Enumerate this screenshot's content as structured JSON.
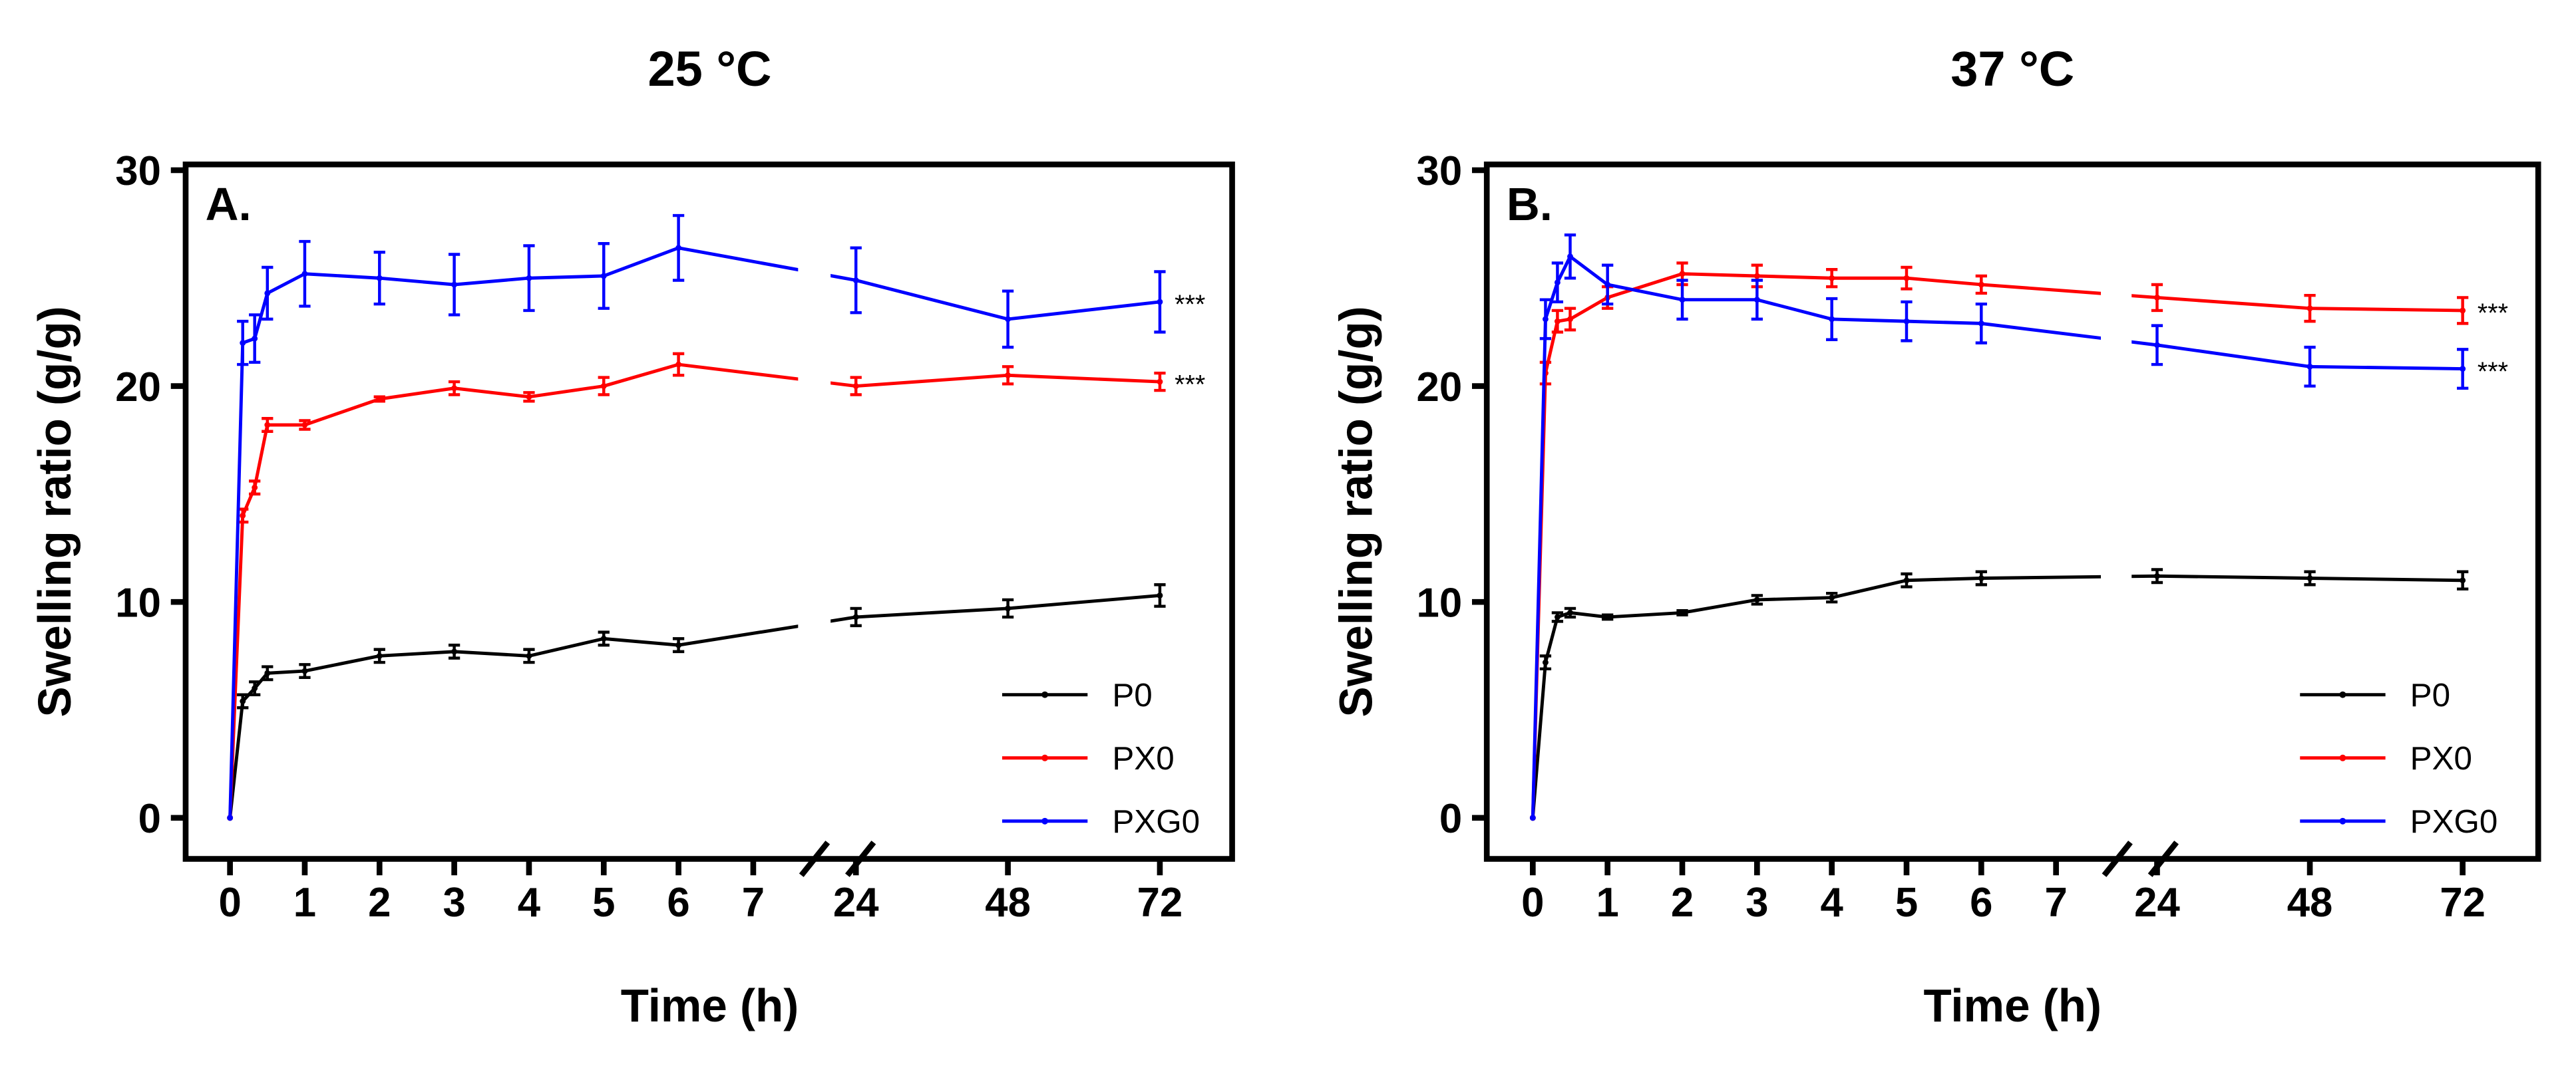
{
  "chart_data": [
    {
      "type": "line",
      "panel_label": "A.",
      "title": "25 °C",
      "xlabel": "Time (h)",
      "ylabel": "Swelling ratio (g/g)",
      "ylim": [
        0,
        30
      ],
      "yticks": [
        "0",
        "10",
        "20",
        "30"
      ],
      "xticks": [
        "0",
        "1",
        "2",
        "3",
        "4",
        "5",
        "6",
        "7",
        "24",
        "48",
        "72"
      ],
      "x_break": [
        7.6,
        20
      ],
      "x": [
        0,
        0.17,
        0.33,
        0.5,
        1,
        2,
        3,
        4,
        5,
        6,
        24,
        48,
        72
      ],
      "legend_position": "bottom-right",
      "series": [
        {
          "name": "P0",
          "color": "#000000",
          "marker": "square",
          "significance": "",
          "values": [
            0,
            5.4,
            6.0,
            6.7,
            6.8,
            7.5,
            7.7,
            7.5,
            8.3,
            8.0,
            9.3,
            9.7,
            10.3
          ],
          "errors": [
            0,
            0.3,
            0.3,
            0.3,
            0.3,
            0.3,
            0.3,
            0.3,
            0.3,
            0.3,
            0.4,
            0.4,
            0.5
          ]
        },
        {
          "name": "PX0",
          "color": "#ff0000",
          "marker": "circle",
          "significance": "***",
          "values": [
            0,
            14.0,
            15.3,
            18.2,
            18.2,
            19.4,
            19.9,
            19.5,
            20.0,
            21.0,
            20.0,
            20.5,
            20.2
          ],
          "errors": [
            0,
            0.3,
            0.3,
            0.3,
            0.2,
            0.1,
            0.3,
            0.2,
            0.4,
            0.5,
            0.4,
            0.4,
            0.4
          ]
        },
        {
          "name": "PXG0",
          "color": "#0000ff",
          "marker": "triangle",
          "significance": "***",
          "values": [
            0,
            22.0,
            22.2,
            24.3,
            25.2,
            25.0,
            24.7,
            25.0,
            25.1,
            26.4,
            24.9,
            23.1,
            23.9
          ],
          "errors": [
            0,
            1.0,
            1.1,
            1.2,
            1.5,
            1.2,
            1.4,
            1.5,
            1.5,
            1.5,
            1.5,
            1.3,
            1.4
          ]
        }
      ]
    },
    {
      "type": "line",
      "panel_label": "B.",
      "title": "37 °C",
      "xlabel": "Time (h)",
      "ylabel": "Swelling ratio (g/g)",
      "ylim": [
        0,
        30
      ],
      "yticks": [
        "0",
        "10",
        "20",
        "30"
      ],
      "xticks": [
        "0",
        "1",
        "2",
        "3",
        "4",
        "5",
        "6",
        "7",
        "24",
        "48",
        "72"
      ],
      "x_break": [
        7.6,
        20
      ],
      "x": [
        0,
        0.17,
        0.33,
        0.5,
        1,
        2,
        3,
        4,
        5,
        6,
        24,
        48,
        72
      ],
      "legend_position": "bottom-right",
      "series": [
        {
          "name": "P0",
          "color": "#000000",
          "marker": "square",
          "significance": "",
          "values": [
            0,
            7.2,
            9.3,
            9.5,
            9.3,
            9.5,
            10.1,
            10.2,
            11.0,
            11.1,
            11.2,
            11.1,
            11.0
          ],
          "errors": [
            0,
            0.3,
            0.2,
            0.2,
            0.1,
            0.1,
            0.2,
            0.2,
            0.3,
            0.3,
            0.3,
            0.3,
            0.4
          ]
        },
        {
          "name": "PX0",
          "color": "#ff0000",
          "marker": "circle",
          "significance": "***",
          "values": [
            0,
            20.6,
            23.0,
            23.1,
            24.1,
            25.2,
            25.1,
            25.0,
            25.0,
            24.7,
            24.1,
            23.6,
            23.5
          ],
          "errors": [
            0,
            0.5,
            0.5,
            0.5,
            0.5,
            0.5,
            0.5,
            0.4,
            0.5,
            0.4,
            0.6,
            0.6,
            0.6
          ]
        },
        {
          "name": "PXG0",
          "color": "#0000ff",
          "marker": "triangle",
          "significance": "***",
          "values": [
            0,
            23.1,
            24.8,
            26.0,
            24.7,
            24.0,
            24.0,
            23.1,
            23.0,
            22.9,
            21.9,
            20.9,
            20.8
          ],
          "errors": [
            0,
            0.9,
            0.9,
            1.0,
            0.9,
            0.9,
            0.9,
            0.95,
            0.9,
            0.9,
            0.9,
            0.9,
            0.9
          ]
        }
      ]
    }
  ]
}
